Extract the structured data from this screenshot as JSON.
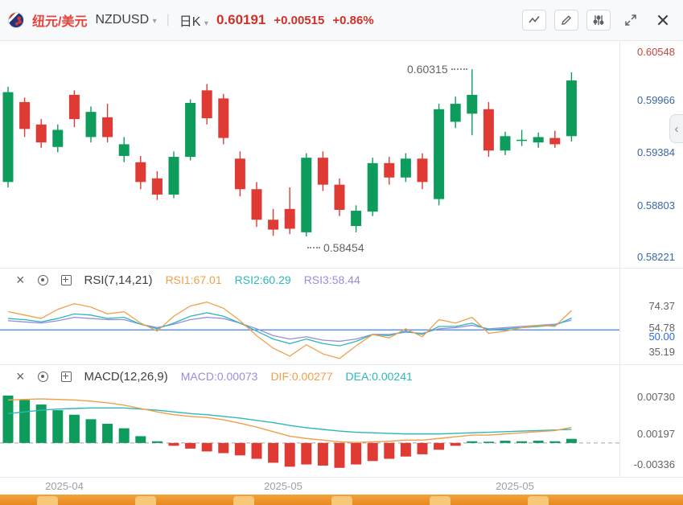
{
  "header": {
    "pair_cn": "纽元/美元",
    "symbol": "NZDUSD",
    "caret": "▾",
    "divider": "|",
    "timeframe": "日K",
    "price": "0.60191",
    "change": "+0.00515",
    "change_pct": "+0.86%"
  },
  "colors": {
    "pair": "#e5433c",
    "up_text": "#cf3126",
    "candle_up": "#0e9c5c",
    "candle_down": "#e03a34",
    "rsi1": "#f0a04a",
    "rsi2": "#2cb8b8",
    "rsi3": "#9b8ce0",
    "dif": "#f0a04a",
    "dea": "#2cb8b8",
    "macd_label": "#9b8ce0",
    "mid_line": "#3b82f6",
    "bottom_strip": "#ef9433"
  },
  "main_chart": {
    "high_annotation": "0.60315",
    "low_annotation": "0.58454",
    "axis": [
      {
        "text": "0.60548",
        "value": 0.60548,
        "dy": 6,
        "color": "#c2453c"
      },
      {
        "text": "0.59966",
        "value": 0.59966,
        "dy": 1,
        "color": "#3a66a8"
      },
      {
        "text": "0.59384",
        "value": 0.59384,
        "dy": 1,
        "color": "#3a66a8"
      },
      {
        "text": "0.58803",
        "value": 0.58803,
        "dy": 2,
        "color": "#3a66a8"
      },
      {
        "text": "0.58221",
        "value": 0.58221,
        "dy": 1,
        "color": "#3a66a8"
      }
    ]
  },
  "rsi_panel": {
    "title": "RSI(7,14,21)",
    "labels": [
      {
        "text": "RSI1:67.01",
        "color": "#f0a04a"
      },
      {
        "text": "RSI2:60.29",
        "color": "#2cb8b8"
      },
      {
        "text": "RSI3:58.44",
        "color": "#9b8ce0"
      }
    ],
    "axis": [
      {
        "text": "74.37",
        "value": 74.37,
        "dy": 6,
        "color": "#5f6368"
      },
      {
        "text": "54.78",
        "value": 54.78,
        "dy": 6,
        "color": "#5f6368"
      },
      {
        "text": "50.00",
        "value": 50.0,
        "dy": 10,
        "color": "#2b6be6"
      },
      {
        "text": "35.19",
        "value": 35.19,
        "dy": 8,
        "color": "#5f6368"
      }
    ]
  },
  "macd_panel": {
    "title": "MACD(12,26,9)",
    "labels": [
      {
        "text": "MACD:0.00073",
        "color": "#9b8ce0"
      },
      {
        "text": "DIF:0.00277",
        "color": "#f0a04a"
      },
      {
        "text": "DEA:0.00241",
        "color": "#2cb8b8"
      }
    ],
    "axis": [
      {
        "text": "0.00730",
        "value": 0.0073,
        "dy": -5,
        "color": "#5f6368"
      },
      {
        "text": "0.00197",
        "value": 0.00197,
        "dy": 4,
        "color": "#5f6368"
      },
      {
        "text": "-0.00336",
        "value": -0.00336,
        "dy": 5,
        "color": "#5f6368"
      }
    ]
  },
  "date_axis": [
    "2025-04",
    "2025-05",
    "2025-05"
  ],
  "chart_data": {
    "type": "candlestick",
    "symbol": "NZDUSD",
    "interval": "日K",
    "last_price": 0.60191,
    "change": 0.00515,
    "change_pct": "+0.86%",
    "price": {
      "ylim": [
        0.5815,
        0.6062
      ],
      "high_annotation": 0.60315,
      "low_annotation": 0.58454,
      "candles_ohlc": [
        [
          0.5906,
          0.6012,
          0.59,
          0.6006
        ],
        [
          0.5995,
          0.6,
          0.5956,
          0.5965
        ],
        [
          0.597,
          0.5976,
          0.5944,
          0.595
        ],
        [
          0.5945,
          0.597,
          0.5939,
          0.5964
        ],
        [
          0.6003,
          0.6008,
          0.5967,
          0.5976
        ],
        [
          0.5956,
          0.599,
          0.595,
          0.5984
        ],
        [
          0.5978,
          0.5993,
          0.595,
          0.5956
        ],
        [
          0.5935,
          0.5956,
          0.5928,
          0.5948
        ],
        [
          0.5928,
          0.5935,
          0.5898,
          0.5906
        ],
        [
          0.591,
          0.5918,
          0.5886,
          0.5892
        ],
        [
          0.5892,
          0.594,
          0.5888,
          0.5934
        ],
        [
          0.5934,
          0.5998,
          0.593,
          0.5994
        ],
        [
          0.6008,
          0.6015,
          0.597,
          0.5977
        ],
        [
          0.5999,
          0.6004,
          0.5948,
          0.5955
        ],
        [
          0.5932,
          0.594,
          0.589,
          0.5898
        ],
        [
          0.5898,
          0.5906,
          0.5856,
          0.5864
        ],
        [
          0.5864,
          0.5876,
          0.5846,
          0.5853
        ],
        [
          0.5876,
          0.59,
          0.5848,
          0.5854
        ],
        [
          0.585,
          0.5938,
          0.58454,
          0.5933
        ],
        [
          0.5933,
          0.594,
          0.5896,
          0.5903
        ],
        [
          0.5903,
          0.591,
          0.5868,
          0.5875
        ],
        [
          0.5857,
          0.588,
          0.585,
          0.5874
        ],
        [
          0.5873,
          0.5933,
          0.5868,
          0.5927
        ],
        [
          0.5927,
          0.5934,
          0.5903,
          0.5911
        ],
        [
          0.5911,
          0.5938,
          0.5906,
          0.5932
        ],
        [
          0.5932,
          0.5938,
          0.5898,
          0.5906
        ],
        [
          0.5887,
          0.5993,
          0.588,
          0.5987
        ],
        [
          0.5973,
          0.6001,
          0.5966,
          0.5993
        ],
        [
          0.5982,
          0.60315,
          0.5958,
          0.6003
        ],
        [
          0.5987,
          0.5995,
          0.5934,
          0.5941
        ],
        [
          0.5941,
          0.5962,
          0.5936,
          0.5957
        ],
        [
          0.5952,
          0.5964,
          0.5946,
          0.5953
        ],
        [
          0.595,
          0.5961,
          0.5944,
          0.5956
        ],
        [
          0.5955,
          0.5963,
          0.5944,
          0.5948
        ],
        [
          0.5957,
          0.6028,
          0.5951,
          0.6019
        ]
      ]
    },
    "rsi": {
      "params": [
        7,
        14,
        21
      ],
      "current": [
        67.01,
        60.29,
        58.44
      ],
      "ylim": [
        22,
        84
      ],
      "mid_line": 50,
      "series": [
        {
          "name": "RSI1",
          "values": [
            66,
            63,
            60,
            68,
            73,
            70,
            64,
            66,
            56,
            49,
            62,
            71,
            74.37,
            69,
            58,
            45,
            34,
            27,
            37,
            29,
            25,
            36,
            46,
            43,
            51,
            44,
            59,
            56,
            61,
            47,
            49,
            52,
            54,
            53,
            67.01
          ]
        },
        {
          "name": "RSI2",
          "values": [
            60,
            59,
            57,
            60,
            64,
            63,
            60,
            61,
            55,
            51,
            56,
            62,
            65,
            62,
            56,
            49,
            42,
            38,
            42,
            38,
            36,
            40,
            46,
            45,
            49,
            46,
            53,
            53,
            56,
            50,
            51,
            52,
            53,
            54,
            60.29
          ]
        },
        {
          "name": "RSI3",
          "values": [
            58,
            57,
            56,
            58,
            61,
            60,
            59,
            59,
            55,
            52,
            55,
            59,
            61,
            60,
            56,
            51,
            45,
            42,
            44,
            41,
            40,
            42,
            46,
            46,
            48,
            47,
            51,
            52,
            54,
            51,
            52,
            53,
            54,
            55,
            58.44
          ]
        }
      ]
    },
    "macd": {
      "params": [
        12,
        26,
        9
      ],
      "current": {
        "macd": 0.00073,
        "dif": 0.00277,
        "dea": 0.00241
      },
      "ylim": [
        -0.005,
        0.0098
      ],
      "histogram": [
        0.0084,
        0.0076,
        0.0068,
        0.0058,
        0.005,
        0.0042,
        0.0034,
        0.0026,
        0.0012,
        0.0003,
        -0.0005,
        -0.001,
        -0.0015,
        -0.0018,
        -0.0022,
        -0.0028,
        -0.0035,
        -0.0042,
        -0.0038,
        -0.004,
        -0.0044,
        -0.0038,
        -0.0032,
        -0.0028,
        -0.0024,
        -0.002,
        -0.0012,
        -0.0005,
        0.0003,
        0.0002,
        0.0004,
        0.0003,
        0.0004,
        0.0003,
        0.00073
      ],
      "dif": [
        0.0076,
        0.0077,
        0.0078,
        0.0077,
        0.0076,
        0.0074,
        0.0071,
        0.0067,
        0.0061,
        0.0055,
        0.005,
        0.0047,
        0.0045,
        0.0041,
        0.0035,
        0.0028,
        0.002,
        0.0012,
        0.0008,
        0.0005,
        0.0002,
        0.0001,
        0.0002,
        0.0003,
        0.0005,
        0.0005,
        0.0008,
        0.0011,
        0.0014,
        0.0014,
        0.0016,
        0.0018,
        0.002,
        0.0022,
        0.00277
      ],
      "dea": [
        0.0052,
        0.0055,
        0.0058,
        0.006,
        0.0061,
        0.0062,
        0.0062,
        0.0062,
        0.006,
        0.0058,
        0.0055,
        0.0052,
        0.005,
        0.0047,
        0.0044,
        0.004,
        0.0036,
        0.0031,
        0.0027,
        0.0024,
        0.0021,
        0.0019,
        0.0018,
        0.0017,
        0.0016,
        0.0016,
        0.0016,
        0.0017,
        0.0018,
        0.0019,
        0.002,
        0.0021,
        0.0022,
        0.0023,
        0.00241
      ]
    },
    "x_axis_dates": [
      "2025-04",
      "2025-05",
      "2025-05"
    ]
  }
}
